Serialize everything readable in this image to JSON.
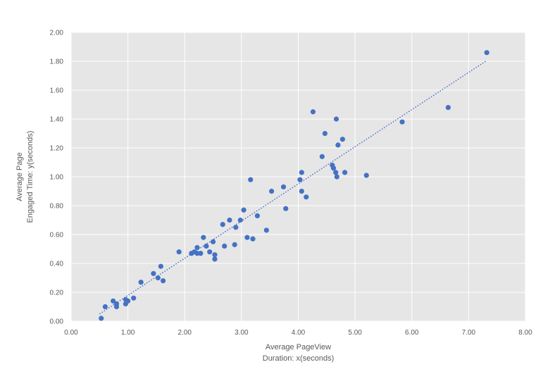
{
  "chart_data": {
    "type": "scatter",
    "title": "",
    "xlabel_lines": [
      "Average PageView",
      "Duration: x(seconds)"
    ],
    "ylabel_lines": [
      "Average Page",
      "Engaged Time: y(seconds)"
    ],
    "xlim": [
      0,
      8
    ],
    "ylim": [
      0,
      2
    ],
    "x_ticks": [
      "0.00",
      "1.00",
      "2.00",
      "3.00",
      "4.00",
      "5.00",
      "6.00",
      "7.00",
      "8.00"
    ],
    "y_ticks": [
      "0.00",
      "0.20",
      "0.40",
      "0.60",
      "0.80",
      "1.00",
      "1.20",
      "1.40",
      "1.60",
      "1.80",
      "2.00"
    ],
    "grid": true,
    "trendline": {
      "style": "dotted",
      "from": [
        0.5,
        0.05
      ],
      "to": [
        7.3,
        1.8
      ]
    },
    "marker_color": "#4472c4",
    "plot_background": "#e7e6e6",
    "points": [
      [
        0.53,
        0.02
      ],
      [
        0.6,
        0.1
      ],
      [
        0.74,
        0.14
      ],
      [
        0.8,
        0.12
      ],
      [
        0.8,
        0.1
      ],
      [
        0.96,
        0.15
      ],
      [
        0.96,
        0.12
      ],
      [
        1.0,
        0.14
      ],
      [
        1.1,
        0.16
      ],
      [
        1.23,
        0.27
      ],
      [
        1.45,
        0.33
      ],
      [
        1.53,
        0.3
      ],
      [
        1.58,
        0.38
      ],
      [
        1.62,
        0.28
      ],
      [
        1.9,
        0.48
      ],
      [
        2.12,
        0.47
      ],
      [
        2.17,
        0.48
      ],
      [
        2.22,
        0.51
      ],
      [
        2.22,
        0.47
      ],
      [
        2.28,
        0.47
      ],
      [
        2.33,
        0.58
      ],
      [
        2.38,
        0.52
      ],
      [
        2.44,
        0.48
      ],
      [
        2.5,
        0.55
      ],
      [
        2.53,
        0.46
      ],
      [
        2.53,
        0.43
      ],
      [
        2.67,
        0.67
      ],
      [
        2.7,
        0.52
      ],
      [
        2.79,
        0.7
      ],
      [
        2.88,
        0.53
      ],
      [
        2.9,
        0.65
      ],
      [
        2.98,
        0.7
      ],
      [
        3.04,
        0.77
      ],
      [
        3.1,
        0.58
      ],
      [
        3.16,
        0.98
      ],
      [
        3.2,
        0.57
      ],
      [
        3.28,
        0.73
      ],
      [
        3.44,
        0.63
      ],
      [
        3.53,
        0.9
      ],
      [
        3.74,
        0.93
      ],
      [
        3.78,
        0.78
      ],
      [
        4.03,
        0.98
      ],
      [
        4.06,
        1.03
      ],
      [
        4.06,
        0.9
      ],
      [
        4.14,
        0.86
      ],
      [
        4.26,
        1.45
      ],
      [
        4.42,
        1.14
      ],
      [
        4.47,
        1.3
      ],
      [
        4.6,
        1.08
      ],
      [
        4.62,
        1.06
      ],
      [
        4.66,
        1.03
      ],
      [
        4.67,
        1.4
      ],
      [
        4.68,
        1.0
      ],
      [
        4.7,
        1.22
      ],
      [
        4.78,
        1.26
      ],
      [
        4.82,
        1.03
      ],
      [
        5.2,
        1.01
      ],
      [
        5.83,
        1.38
      ],
      [
        6.64,
        1.48
      ],
      [
        7.32,
        1.86
      ]
    ]
  }
}
